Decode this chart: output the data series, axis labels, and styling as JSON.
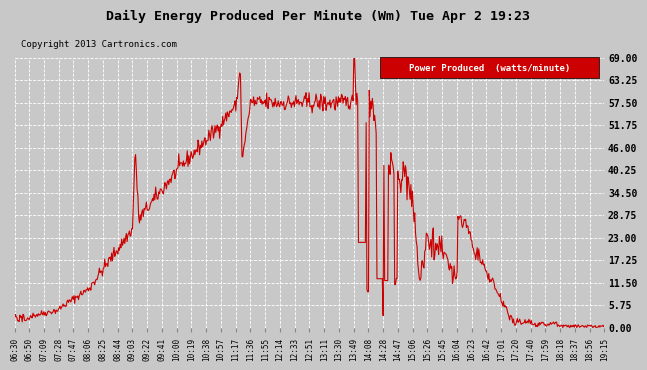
{
  "title": "Daily Energy Produced Per Minute (Wm) Tue Apr 2 19:23",
  "copyright": "Copyright 2013 Cartronics.com",
  "legend_label": "Power Produced  (watts/minute)",
  "legend_bg": "#cc0000",
  "legend_text_color": "#ffffff",
  "line_color": "#cc0000",
  "bg_color": "#c8c8c8",
  "plot_bg_color": "#c8c8c8",
  "grid_color": "#ffffff",
  "yticks": [
    0.0,
    5.75,
    11.5,
    17.25,
    23.0,
    28.75,
    34.5,
    40.25,
    46.0,
    51.75,
    57.5,
    63.25,
    69.0
  ],
  "ylim": [
    0,
    69.0
  ],
  "xtick_labels": [
    "06:30",
    "06:50",
    "07:09",
    "07:28",
    "07:47",
    "08:06",
    "08:25",
    "08:44",
    "09:03",
    "09:22",
    "09:41",
    "10:00",
    "10:19",
    "10:38",
    "10:57",
    "11:17",
    "11:36",
    "11:55",
    "12:14",
    "12:33",
    "12:51",
    "13:11",
    "13:30",
    "13:49",
    "14:08",
    "14:28",
    "14:47",
    "15:06",
    "15:26",
    "15:45",
    "16:04",
    "16:23",
    "16:42",
    "17:01",
    "17:20",
    "17:40",
    "17:59",
    "18:18",
    "18:37",
    "18:56",
    "19:15"
  ]
}
